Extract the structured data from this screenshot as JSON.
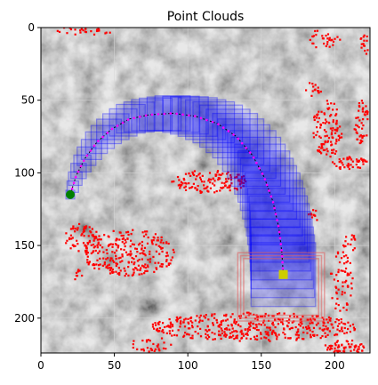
{
  "chart_data": {
    "type": "scatter",
    "title": "Point Clouds",
    "xlabel": "",
    "ylabel": "",
    "xlim": [
      0,
      224
    ],
    "ylim": [
      224,
      0
    ],
    "y_inverted": true,
    "grid": true,
    "legend": "none",
    "x_ticks": [
      0,
      50,
      100,
      150,
      200
    ],
    "y_ticks": [
      0,
      50,
      100,
      150,
      200
    ],
    "background": "grayscale terrain image",
    "colors": {
      "obstacle_points": "#ff0000",
      "sample_boxes": "#0000ff",
      "trajectory_points": "#ff00ff",
      "path": "#000000",
      "start_marker": "#008000",
      "goal_marker": "#cccc00",
      "goal_box": "#e06060"
    },
    "start_point": {
      "x": 20,
      "y": 115
    },
    "goal_point": {
      "x": 165,
      "y": 170
    },
    "goal_box": {
      "x0": 134,
      "x1": 193,
      "y0": 155,
      "y1": 202
    },
    "path": [
      {
        "x": 20,
        "y": 115
      },
      {
        "x": 24,
        "y": 102
      },
      {
        "x": 30,
        "y": 90
      },
      {
        "x": 38,
        "y": 79
      },
      {
        "x": 48,
        "y": 70
      },
      {
        "x": 60,
        "y": 63
      },
      {
        "x": 74,
        "y": 60
      },
      {
        "x": 90,
        "y": 59
      },
      {
        "x": 105,
        "y": 61
      },
      {
        "x": 120,
        "y": 66
      },
      {
        "x": 133,
        "y": 75
      },
      {
        "x": 144,
        "y": 88
      },
      {
        "x": 152,
        "y": 103
      },
      {
        "x": 158,
        "y": 120
      },
      {
        "x": 162,
        "y": 138
      },
      {
        "x": 164,
        "y": 155
      },
      {
        "x": 165,
        "y": 170
      }
    ],
    "box_half_size_start": 3,
    "box_half_size_end": 22,
    "obstacle_clusters": [
      {
        "cx": 60,
        "cy": 155,
        "rx": 32,
        "ry": 16,
        "n": 260
      },
      {
        "cx": 28,
        "cy": 145,
        "rx": 12,
        "ry": 10,
        "n": 60
      },
      {
        "cx": 115,
        "cy": 106,
        "rx": 26,
        "ry": 8,
        "n": 130
      },
      {
        "cx": 145,
        "cy": 206,
        "rx": 70,
        "ry": 10,
        "n": 420
      },
      {
        "cx": 205,
        "cy": 175,
        "rx": 8,
        "ry": 22,
        "n": 60
      },
      {
        "cx": 207,
        "cy": 220,
        "rx": 14,
        "ry": 5,
        "n": 60
      },
      {
        "cx": 195,
        "cy": 70,
        "rx": 10,
        "ry": 20,
        "n": 110
      },
      {
        "cx": 218,
        "cy": 65,
        "rx": 5,
        "ry": 15,
        "n": 45
      },
      {
        "cx": 210,
        "cy": 93,
        "rx": 12,
        "ry": 5,
        "n": 45
      },
      {
        "cx": 185,
        "cy": 43,
        "rx": 6,
        "ry": 6,
        "n": 15
      },
      {
        "cx": 30,
        "cy": 2,
        "rx": 20,
        "ry": 3,
        "n": 30
      },
      {
        "cx": 190,
        "cy": 8,
        "rx": 14,
        "ry": 6,
        "n": 30
      },
      {
        "cx": 220,
        "cy": 12,
        "rx": 3,
        "ry": 8,
        "n": 15
      },
      {
        "cx": 75,
        "cy": 218,
        "rx": 14,
        "ry": 5,
        "n": 30
      },
      {
        "cx": 210,
        "cy": 148,
        "rx": 5,
        "ry": 6,
        "n": 15
      },
      {
        "cx": 186,
        "cy": 130,
        "rx": 4,
        "ry": 5,
        "n": 10
      },
      {
        "cx": 25,
        "cy": 170,
        "rx": 3,
        "ry": 4,
        "n": 8
      }
    ]
  }
}
